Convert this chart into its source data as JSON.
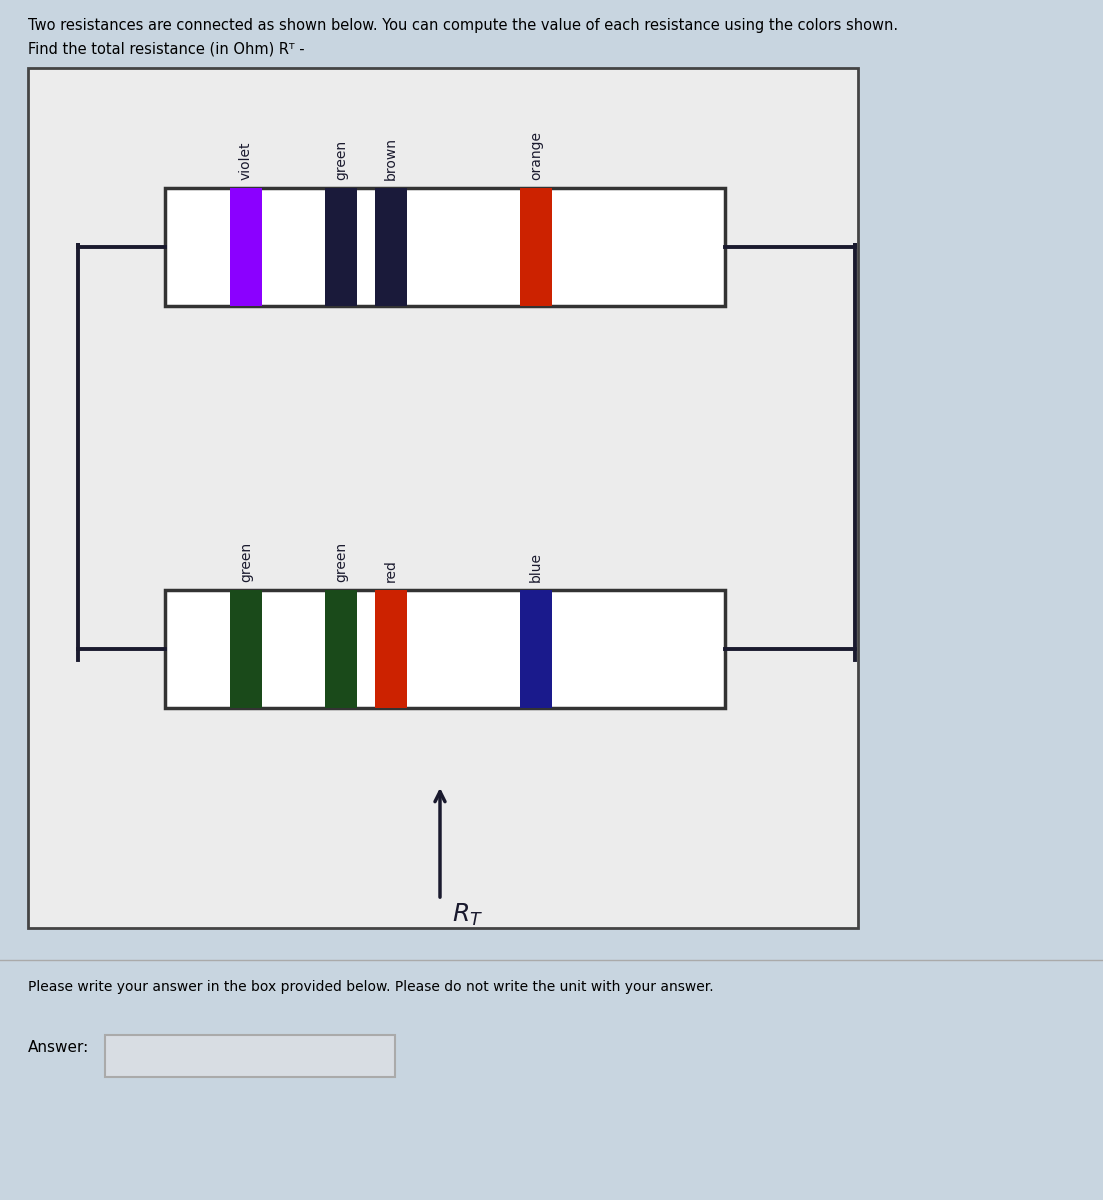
{
  "title_line1": "Two resistances are connected as shown below. You can compute the value of each resistance using the colors shown.",
  "title_line2": "Find the total resistance (in Ohm) Rᵀ -",
  "bg_color": "#c8d5e0",
  "circuit_bg": "#e8e4e0",
  "resistor_bg": "white",
  "wire_color": "#1a1a2e",
  "r1_bands": [
    {
      "color": "#8B00FF",
      "label": "violet"
    },
    {
      "color": "#1a1a3a",
      "label": "green"
    },
    {
      "color": "#1a1a3a",
      "label": "brown"
    },
    {
      "color": "#cc2200",
      "label": "orange"
    }
  ],
  "r2_bands": [
    {
      "color": "#1a4a1a",
      "label": "green"
    },
    {
      "color": "#1a4a1a",
      "label": "green"
    },
    {
      "color": "#cc2200",
      "label": "red"
    },
    {
      "color": "#1a1a8c",
      "label": "blue"
    }
  ],
  "answer_text": "Please write your answer in the box provided below. Please do not write the unit with your answer.",
  "answer_label": "Answer:"
}
